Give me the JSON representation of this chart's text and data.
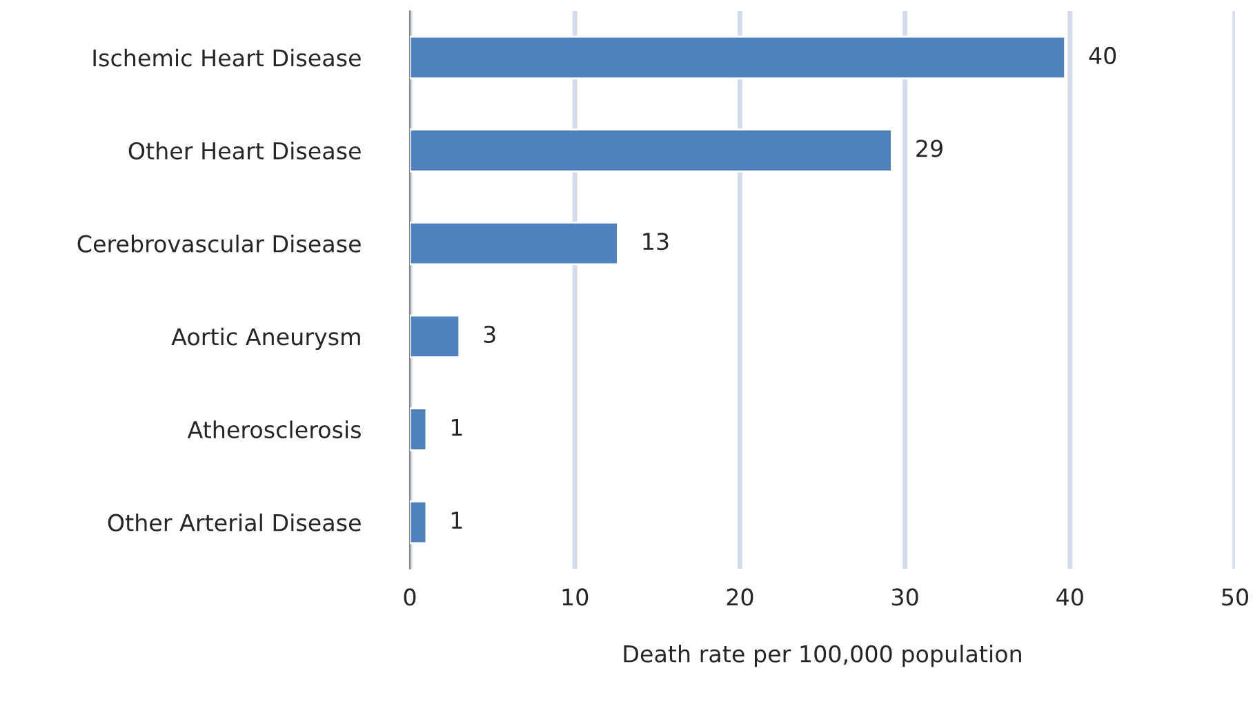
{
  "chart_data": {
    "type": "bar",
    "orientation": "horizontal",
    "xlabel": "Death rate per 100,000 population",
    "categories": [
      "Ischemic Heart Disease",
      "Other Heart Disease",
      "Cerebrovascular Disease",
      "Aortic Aneurysm",
      "Atherosclerosis",
      "Other Arterial Disease"
    ],
    "values": [
      39.7,
      29.2,
      12.6,
      3.0,
      1.0,
      1.0
    ],
    "value_labels": [
      "40",
      "29",
      "13",
      "3",
      "1",
      "1"
    ],
    "color": "#4f81bd",
    "xlim": [
      0,
      50
    ],
    "xticks": [
      0,
      10,
      20,
      30,
      40,
      50
    ],
    "grid": "x"
  }
}
